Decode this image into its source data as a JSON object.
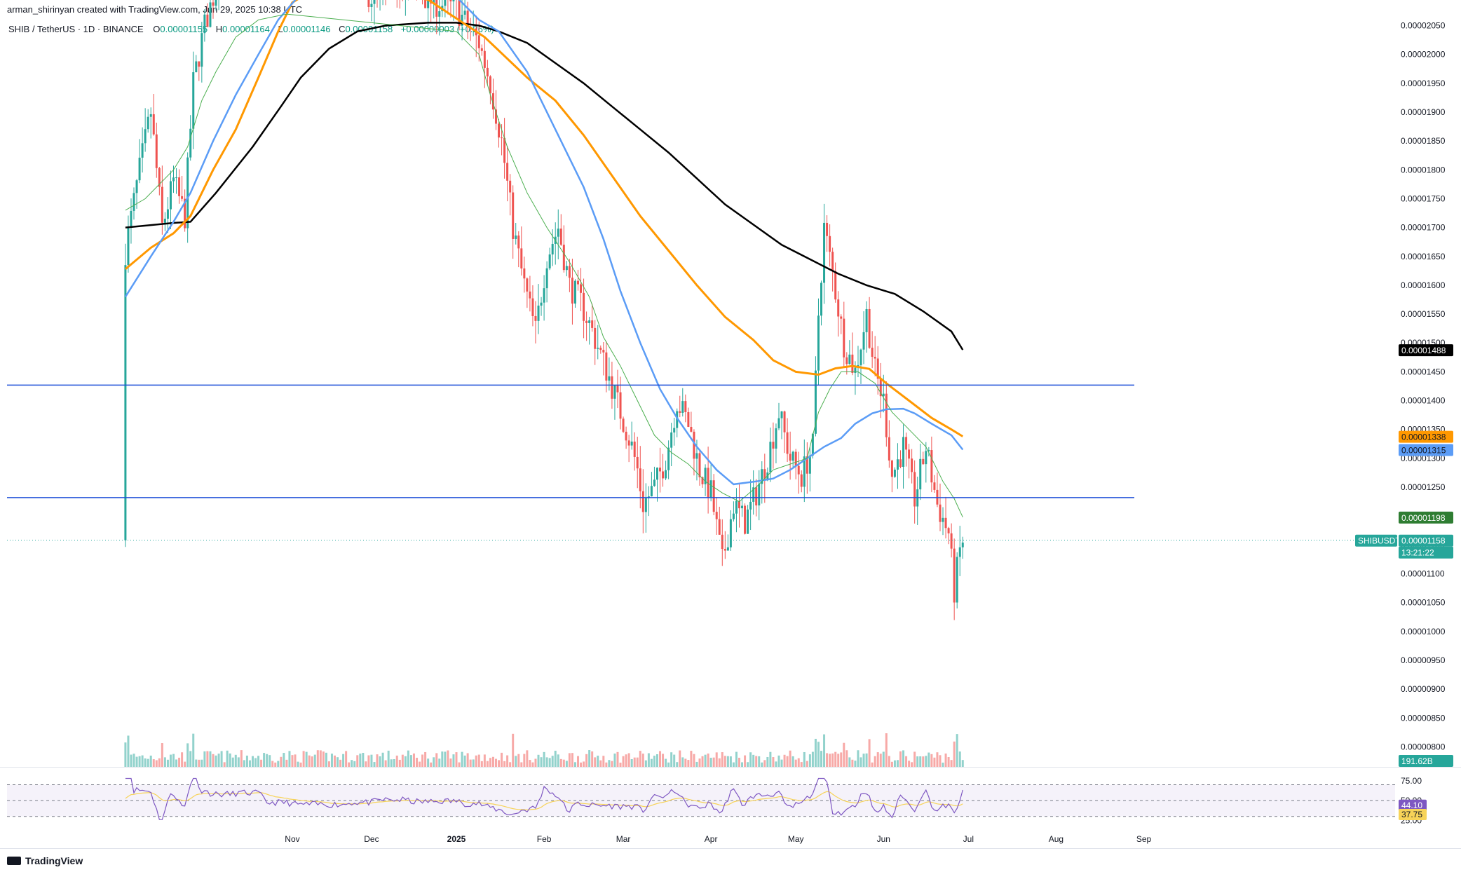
{
  "header": {
    "attribution": "arman_shirinyan created with TradingView.com, Jun 29, 2025 10:38 UTC",
    "symbol": "SHIB / TetherUS · 1D · BINANCE",
    "open_label": "O",
    "open": "0.00001155",
    "high_label": "H",
    "high": "0.00001164",
    "low_label": "L",
    "low": "0.00001146",
    "close_label": "C",
    "close": "0.00001158",
    "change": "+0.00000003 (+0.26%)"
  },
  "colors": {
    "up": "#26a69a",
    "down": "#ef5350",
    "ma_black": "#000000",
    "ma_orange": "#ff9800",
    "ma_blue": "#5b9cf6",
    "ma_green": "#4caf50",
    "hline": "#1e4fd8",
    "rsi": "#7e57c2",
    "rsi_ma": "#f7d358"
  },
  "chart_data": {
    "type": "candlestick",
    "y_axis_ticks": [
      "0.00002050",
      "0.00002000",
      "0.00001950",
      "0.00001900",
      "0.00001850",
      "0.00001800",
      "0.00001750",
      "0.00001700",
      "0.00001650",
      "0.00001600",
      "0.00001550",
      "0.00001500",
      "0.00001450",
      "0.00001400",
      "0.00001350",
      "0.00001300",
      "0.00001250",
      "0.00001200",
      "0.00001150",
      "0.00001100",
      "0.00001050",
      "0.00001000",
      "0.00000950",
      "0.00000900",
      "0.00000850",
      "0.00000800"
    ],
    "x_axis_ticks": [
      "Nov",
      "Dec",
      "2025",
      "Feb",
      "Mar",
      "Apr",
      "May",
      "Jun",
      "Jul",
      "Aug",
      "Sep"
    ],
    "ylim": [
      7.92e-06,
      2.064e-05
    ],
    "horizontal_levels": [
      1.427e-05,
      1.232e-05
    ],
    "last_price_line": 1.158e-05,
    "price_labels": [
      {
        "name": "ma-200",
        "value": "0.00001488"
      },
      {
        "name": "ma-100",
        "value": "0.00001338"
      },
      {
        "name": "ma-50",
        "value": "0.00001315"
      },
      {
        "name": "ma-20",
        "value": "0.00001198"
      },
      {
        "name": "symbol",
        "value": "SHIBUSDT"
      },
      {
        "name": "last",
        "value": "0.00001158"
      },
      {
        "name": "countdown",
        "value": "13:21:22"
      }
    ],
    "volume_label": "191.62B",
    "rsi": {
      "ticks": [
        "75.00",
        "50.00",
        "25.00"
      ],
      "ylim": [
        20,
        82
      ],
      "upper_band": 70,
      "middle": 50,
      "lower_band": 30,
      "value_label": "44.10",
      "ma_label": "37.75",
      "value": 44.1,
      "ma_value": 37.75
    },
    "ma_series": [
      {
        "key": "black",
        "points": [
          [
            -117,
            1.7
          ],
          [
            -100,
            1.708
          ],
          [
            -94,
            1.71
          ],
          [
            -85,
            1.76
          ],
          [
            -72,
            1.84
          ],
          [
            -62,
            1.91
          ],
          [
            -55,
            1.96
          ],
          [
            -45,
            2.01
          ],
          [
            -35,
            2.04
          ],
          [
            -25,
            2.05
          ],
          [
            -10,
            2.055
          ],
          [
            0,
            2.055
          ],
          [
            8,
            2.05
          ],
          [
            15,
            2.04
          ],
          [
            25,
            2.02
          ],
          [
            35,
            1.985
          ],
          [
            45,
            1.95
          ],
          [
            55,
            1.91
          ],
          [
            65,
            1.87
          ],
          [
            75,
            1.83
          ],
          [
            85,
            1.785
          ],
          [
            95,
            1.74
          ],
          [
            105,
            1.705
          ],
          [
            115,
            1.67
          ],
          [
            125,
            1.645
          ],
          [
            135,
            1.62
          ],
          [
            145,
            1.6
          ],
          [
            155,
            1.585
          ],
          [
            165,
            1.555
          ],
          [
            175,
            1.52
          ],
          [
            179,
            1.488
          ]
        ]
      },
      {
        "key": "orange",
        "points": [
          [
            -117,
            1.628
          ],
          [
            -108,
            1.665
          ],
          [
            -100,
            1.69
          ],
          [
            -94,
            1.72
          ],
          [
            -86,
            1.8
          ],
          [
            -78,
            1.87
          ],
          [
            -70,
            1.96
          ],
          [
            -63,
            2.04
          ],
          [
            -58,
            2.09
          ],
          [
            -48,
            2.12
          ],
          [
            -30,
            2.11
          ],
          [
            -10,
            2.095
          ],
          [
            10,
            2.03
          ],
          [
            25,
            1.96
          ],
          [
            35,
            1.92
          ],
          [
            45,
            1.86
          ],
          [
            55,
            1.79
          ],
          [
            65,
            1.72
          ],
          [
            75,
            1.66
          ],
          [
            85,
            1.6
          ],
          [
            95,
            1.545
          ],
          [
            105,
            1.505
          ],
          [
            112,
            1.47
          ],
          [
            120,
            1.45
          ],
          [
            128,
            1.445
          ],
          [
            134,
            1.456
          ],
          [
            140,
            1.46
          ],
          [
            146,
            1.455
          ],
          [
            152,
            1.43
          ],
          [
            160,
            1.4
          ],
          [
            168,
            1.37
          ],
          [
            175,
            1.35
          ],
          [
            179,
            1.338
          ]
        ]
      },
      {
        "key": "blue",
        "points": [
          [
            -117,
            1.58
          ],
          [
            -108,
            1.65
          ],
          [
            -100,
            1.71
          ],
          [
            -94,
            1.76
          ],
          [
            -86,
            1.85
          ],
          [
            -78,
            1.93
          ],
          [
            -70,
            2.0
          ],
          [
            -63,
            2.06
          ],
          [
            -56,
            2.1
          ],
          [
            0,
            2.1
          ],
          [
            8,
            2.06
          ],
          [
            15,
            2.04
          ],
          [
            25,
            1.97
          ],
          [
            35,
            1.87
          ],
          [
            45,
            1.77
          ],
          [
            52,
            1.68
          ],
          [
            58,
            1.59
          ],
          [
            65,
            1.5
          ],
          [
            72,
            1.42
          ],
          [
            78,
            1.37
          ],
          [
            85,
            1.32
          ],
          [
            92,
            1.28
          ],
          [
            98,
            1.255
          ],
          [
            106,
            1.26
          ],
          [
            112,
            1.265
          ],
          [
            118,
            1.28
          ],
          [
            124,
            1.3
          ],
          [
            130,
            1.32
          ],
          [
            136,
            1.335
          ],
          [
            141,
            1.36
          ],
          [
            147,
            1.378
          ],
          [
            152,
            1.385
          ],
          [
            158,
            1.386
          ],
          [
            162,
            1.378
          ],
          [
            168,
            1.36
          ],
          [
            175,
            1.34
          ],
          [
            179,
            1.315
          ]
        ]
      },
      {
        "key": "green",
        "points": [
          [
            -117,
            1.73
          ],
          [
            -110,
            1.75
          ],
          [
            -100,
            1.8
          ],
          [
            -95,
            1.84
          ],
          [
            -90,
            1.92
          ],
          [
            -85,
            1.97
          ],
          [
            -78,
            2.03
          ],
          [
            -70,
            2.06
          ],
          [
            -60,
            2.07
          ],
          [
            -40,
            2.06
          ],
          [
            -20,
            2.05
          ],
          [
            0,
            2.04
          ],
          [
            8,
            2.0
          ],
          [
            12,
            1.93
          ],
          [
            18,
            1.84
          ],
          [
            25,
            1.76
          ],
          [
            32,
            1.7
          ],
          [
            40,
            1.64
          ],
          [
            47,
            1.58
          ],
          [
            52,
            1.51
          ],
          [
            58,
            1.46
          ],
          [
            64,
            1.4
          ],
          [
            70,
            1.34
          ],
          [
            76,
            1.31
          ],
          [
            82,
            1.29
          ],
          [
            88,
            1.26
          ],
          [
            94,
            1.24
          ],
          [
            100,
            1.225
          ],
          [
            106,
            1.25
          ],
          [
            112,
            1.28
          ],
          [
            118,
            1.29
          ],
          [
            124,
            1.3
          ],
          [
            128,
            1.38
          ],
          [
            132,
            1.42
          ],
          [
            136,
            1.45
          ],
          [
            142,
            1.45
          ],
          [
            148,
            1.43
          ],
          [
            154,
            1.38
          ],
          [
            160,
            1.35
          ],
          [
            166,
            1.32
          ],
          [
            172,
            1.26
          ],
          [
            176,
            1.23
          ],
          [
            179,
            1.198
          ]
        ]
      }
    ]
  },
  "footer": {
    "brand": "TradingView"
  }
}
